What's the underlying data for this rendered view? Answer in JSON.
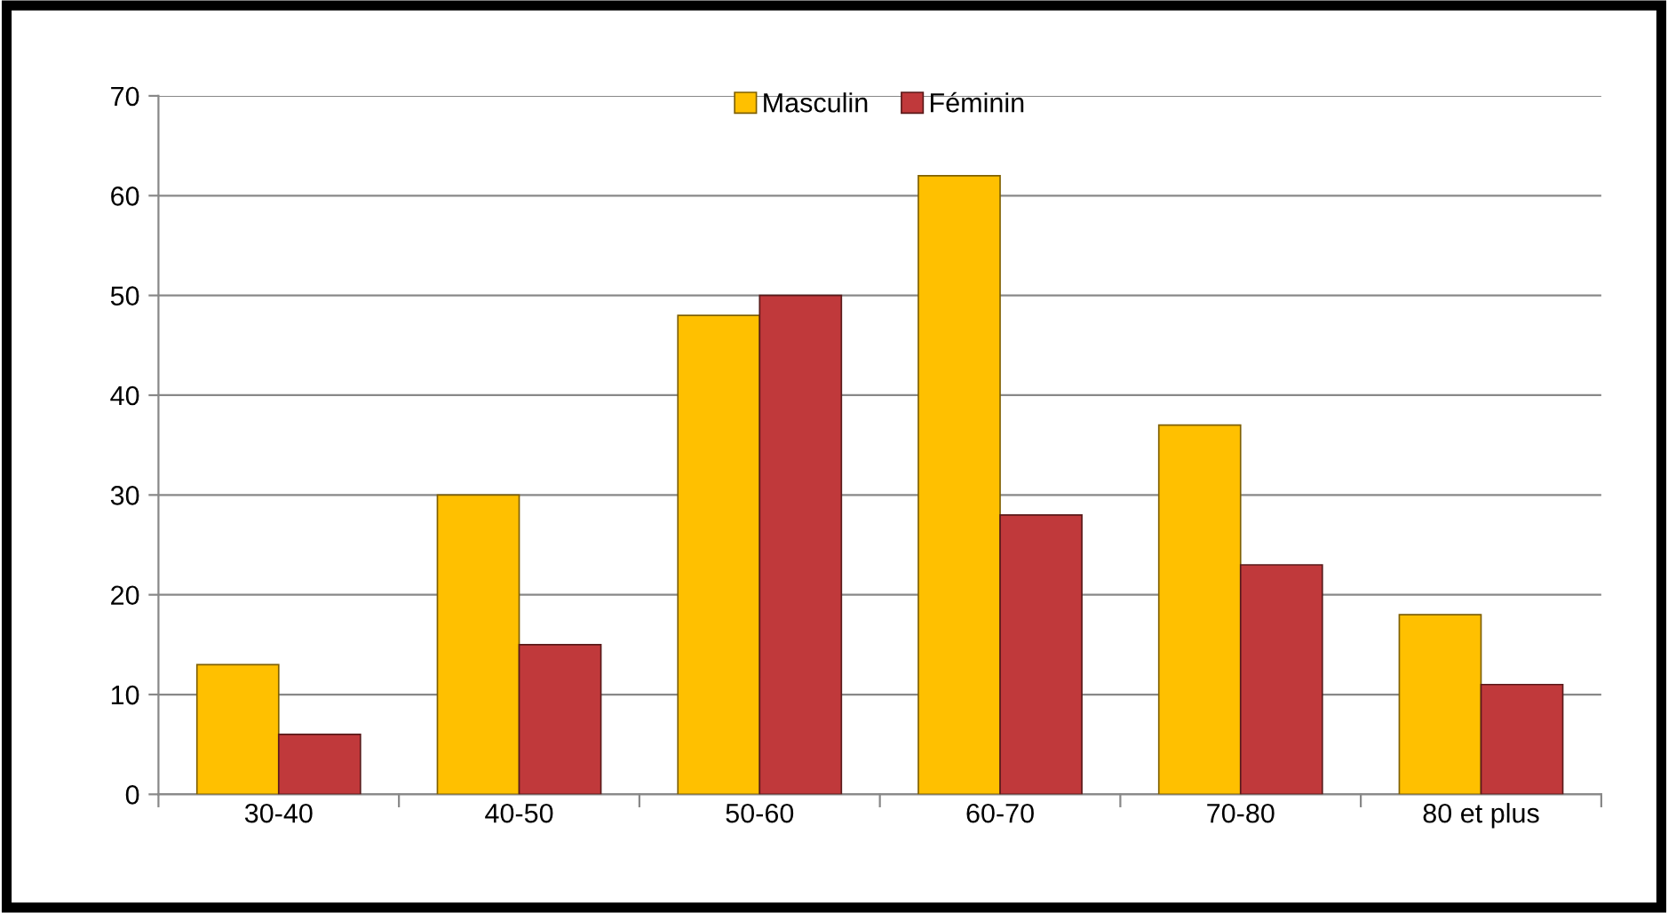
{
  "chart_data": {
    "type": "bar",
    "categories": [
      "30-40",
      "40-50",
      "50-60",
      "60-70",
      "70-80",
      "80 et plus"
    ],
    "series": [
      {
        "name": "Masculin",
        "color": "#ffc000",
        "values": [
          13,
          30,
          48,
          62,
          37,
          18
        ]
      },
      {
        "name": "Féminin",
        "color": "#c0393b",
        "values": [
          6,
          15,
          50,
          28,
          23,
          11
        ]
      }
    ],
    "ylim": [
      0,
      70
    ],
    "yticks": [
      0,
      10,
      20,
      30,
      40,
      50,
      60,
      70
    ],
    "grid": "y",
    "legend": "top"
  }
}
